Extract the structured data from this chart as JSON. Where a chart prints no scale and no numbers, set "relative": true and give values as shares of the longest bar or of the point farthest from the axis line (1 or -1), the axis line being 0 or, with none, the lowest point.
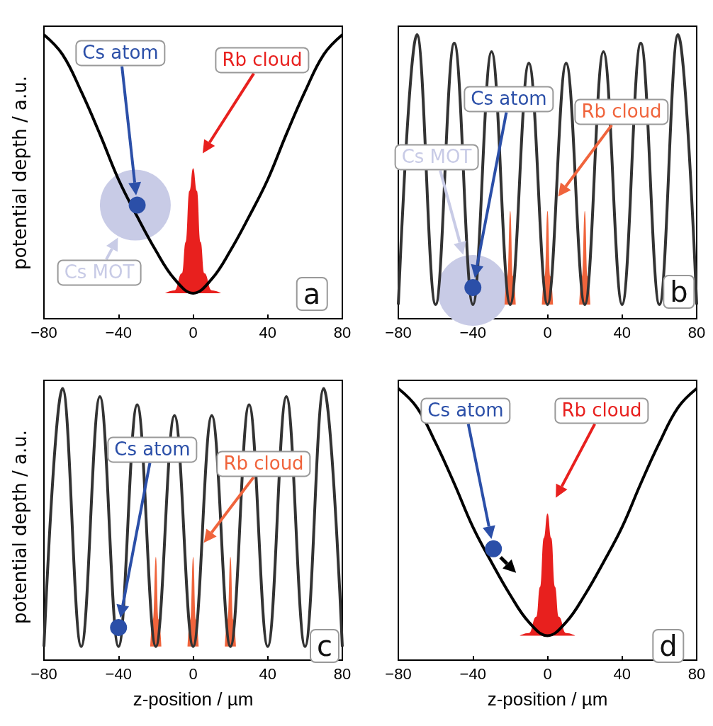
{
  "chart_data": [
    {
      "type": "line",
      "ylabel": "potential depth / a.u.",
      "relative": true,
      "tick_labels": "x",
      "xlim": [
        -80,
        80
      ],
      "xticks": [
        -80,
        -40,
        0,
        40,
        80
      ],
      "series": [
        {
          "type": "line",
          "color": "#000000",
          "x": [
            -80,
            -70,
            -60,
            -50,
            -40,
            -30,
            -20,
            -10,
            0,
            10,
            20,
            30,
            40,
            50,
            60,
            70,
            80
          ],
          "values": [
            1.0,
            0.93,
            0.8,
            0.65,
            0.49,
            0.36,
            0.24,
            0.14,
            0.09,
            0.14,
            0.24,
            0.36,
            0.49,
            0.65,
            0.8,
            0.93,
            1.0
          ]
        },
        {
          "type": "area",
          "color": "#e8201e",
          "x": [
            -15,
            -10,
            -6,
            -4,
            -2,
            0,
            2,
            4,
            6,
            10,
            15
          ],
          "values": [
            0.09,
            0.1,
            0.16,
            0.27,
            0.45,
            0.53,
            0.45,
            0.27,
            0.16,
            0.1,
            0.09
          ]
        },
        {
          "type": "scatter",
          "color": "#c8cbe6",
          "x": [
            -31
          ],
          "values": [
            0.4
          ]
        },
        {
          "type": "scatter",
          "color": "#2b4fa8",
          "x": [
            -30
          ],
          "values": [
            0.4
          ]
        }
      ],
      "annotations": [
        "Cs atom",
        "Rb cloud",
        "Cs MOT",
        "a"
      ]
    },
    {
      "type": "line",
      "relative": true,
      "tick_labels": "x",
      "xlim": [
        -80,
        80
      ],
      "xticks": [
        -80,
        -40,
        0,
        40,
        80
      ],
      "series": [
        {
          "type": "line",
          "color": "#333333",
          "x": [
            -80,
            -70,
            -60,
            -50,
            -40,
            -30,
            -20,
            -10,
            0,
            10,
            20,
            30,
            40,
            50,
            60,
            70,
            80
          ],
          "values": [
            0.05,
            1.0,
            0.05,
            0.97,
            0.05,
            0.94,
            0.05,
            0.9,
            0.05,
            0.9,
            0.05,
            0.94,
            0.05,
            0.97,
            0.05,
            1.0,
            0.05
          ]
        },
        {
          "type": "area",
          "color": "#f0643c",
          "x": [
            -23,
            -21.5,
            -20,
            -18.5,
            -17,
            -10,
            -3,
            -1.5,
            0,
            1.5,
            3,
            10,
            17,
            18.5,
            20,
            21.5,
            23
          ],
          "values": [
            0.05,
            0.15,
            0.38,
            0.15,
            0.05,
            null,
            0.05,
            0.15,
            0.38,
            0.15,
            0.05,
            null,
            0.05,
            0.15,
            0.38,
            0.15,
            0.05
          ]
        },
        {
          "type": "scatter",
          "color": "#c8cbe6",
          "x": [
            -40
          ],
          "values": [
            0.1
          ]
        },
        {
          "type": "scatter",
          "color": "#2b4fa8",
          "x": [
            -40
          ],
          "values": [
            0.11
          ]
        }
      ],
      "annotations": [
        "Cs atom",
        "Rb cloud",
        "Cs MOT",
        "b"
      ]
    },
    {
      "type": "line",
      "ylabel": "potential depth / a.u.",
      "xlabel": "z-position / µm",
      "relative": true,
      "tick_labels": "x",
      "xlim": [
        -80,
        80
      ],
      "xticks": [
        -80,
        -40,
        0,
        40,
        80
      ],
      "series": [
        {
          "type": "line",
          "color": "#333333",
          "x": [
            -80,
            -70,
            -60,
            -50,
            -40,
            -30,
            -20,
            -10,
            0,
            10,
            20,
            30,
            40,
            50,
            60,
            70,
            80
          ],
          "values": [
            0.05,
            1.0,
            0.05,
            0.97,
            0.05,
            0.94,
            0.05,
            0.9,
            0.05,
            0.9,
            0.05,
            0.94,
            0.05,
            0.97,
            0.05,
            1.0,
            0.05
          ]
        },
        {
          "type": "area",
          "color": "#f0643c",
          "x": [
            -23,
            -21.5,
            -20,
            -18.5,
            -17,
            -10,
            -3,
            -1.5,
            0,
            1.5,
            3,
            10,
            17,
            18.5,
            20,
            21.5,
            23
          ],
          "values": [
            0.05,
            0.15,
            0.38,
            0.15,
            0.05,
            null,
            0.05,
            0.15,
            0.38,
            0.15,
            0.05,
            null,
            0.05,
            0.15,
            0.38,
            0.15,
            0.05
          ]
        },
        {
          "type": "scatter",
          "color": "#2b4fa8",
          "x": [
            -40
          ],
          "values": [
            0.12
          ]
        }
      ],
      "annotations": [
        "Cs atom",
        "Rb cloud",
        "c"
      ]
    },
    {
      "type": "line",
      "xlabel": "z-position / µm",
      "relative": true,
      "tick_labels": "x",
      "xlim": [
        -80,
        80
      ],
      "xticks": [
        -80,
        -40,
        0,
        40,
        80
      ],
      "series": [
        {
          "type": "line",
          "color": "#000000",
          "x": [
            -80,
            -70,
            -60,
            -50,
            -40,
            -30,
            -20,
            -10,
            0,
            10,
            20,
            30,
            40,
            50,
            60,
            70,
            80
          ],
          "values": [
            1.0,
            0.93,
            0.8,
            0.65,
            0.49,
            0.36,
            0.24,
            0.14,
            0.09,
            0.14,
            0.24,
            0.36,
            0.49,
            0.65,
            0.8,
            0.93,
            1.0
          ]
        },
        {
          "type": "area",
          "color": "#e8201e",
          "x": [
            -15,
            -10,
            -6,
            -4,
            -2,
            0,
            2,
            4,
            6,
            10,
            15
          ],
          "values": [
            0.09,
            0.1,
            0.16,
            0.27,
            0.45,
            0.54,
            0.45,
            0.27,
            0.16,
            0.1,
            0.09
          ]
        },
        {
          "type": "scatter",
          "color": "#2b4fa8",
          "x": [
            -29
          ],
          "values": [
            0.41
          ]
        }
      ],
      "annotations": [
        "Cs atom",
        "Rb cloud",
        "d"
      ]
    }
  ]
}
